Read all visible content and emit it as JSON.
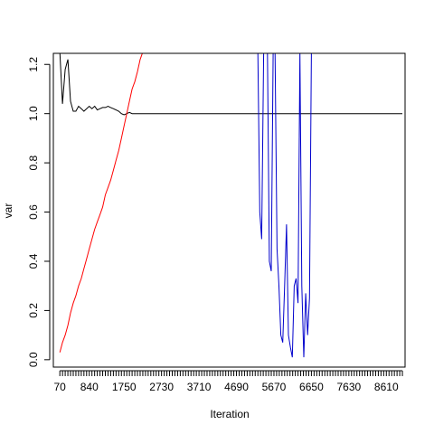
{
  "chart_data": {
    "type": "line",
    "title": "",
    "xlabel": "Iteration",
    "ylabel": "var",
    "xlim": [
      -100,
      9100
    ],
    "ylim": [
      -0.03,
      1.245
    ],
    "xtick_labels": [
      70,
      840,
      1750,
      2730,
      3710,
      4690,
      5670,
      6650,
      7630,
      8610
    ],
    "xtick_minor_step": 70,
    "xtick_minor_end": 9030,
    "ytick_labels": [
      0.0,
      0.2,
      0.4,
      0.6,
      0.8,
      1.0,
      1.2
    ],
    "ytick_format": [
      "0.0",
      "0.2",
      "0.4",
      "0.6",
      "0.8",
      "1.0",
      "1.2"
    ],
    "grid": false,
    "legend": "none",
    "series": [
      {
        "color": "#000000",
        "x": [
          70,
          140,
          210,
          280,
          350,
          420,
          490,
          560,
          630,
          700,
          770,
          840,
          910,
          980,
          1050,
          1120,
          1190,
          1260,
          1330,
          1400,
          1470,
          1540,
          1610,
          1680,
          1750,
          1820,
          1890,
          1960,
          2030,
          2100,
          9030
        ],
        "y": [
          1.25,
          1.04,
          1.18,
          1.22,
          1.05,
          1.01,
          1.01,
          1.03,
          1.02,
          1.01,
          1.02,
          1.03,
          1.02,
          1.03,
          1.015,
          1.02,
          1.025,
          1.025,
          1.03,
          1.025,
          1.02,
          1.015,
          1.01,
          1.0,
          0.995,
          1.0,
          1.005,
          1.0,
          1.0,
          1.0,
          1.0
        ]
      },
      {
        "color": "#ff0000",
        "x": [
          70,
          140,
          210,
          280,
          350,
          420,
          490,
          560,
          630,
          700,
          770,
          840,
          910,
          980,
          1050,
          1120,
          1190,
          1260,
          1330,
          1400,
          1470,
          1540,
          1610,
          1680,
          1750,
          1820,
          1890,
          1960,
          2030,
          2100,
          2170,
          2240
        ],
        "y": [
          0.03,
          0.07,
          0.1,
          0.14,
          0.19,
          0.23,
          0.26,
          0.3,
          0.33,
          0.37,
          0.41,
          0.45,
          0.49,
          0.53,
          0.56,
          0.59,
          0.62,
          0.67,
          0.7,
          0.73,
          0.77,
          0.81,
          0.85,
          0.9,
          0.95,
          1.0,
          1.05,
          1.1,
          1.13,
          1.17,
          1.22,
          1.25
        ]
      },
      {
        "color": "#0000cc",
        "x": [
          5250,
          5300,
          5350,
          5400,
          5450,
          5500,
          5550,
          5600,
          5650,
          5700,
          5750,
          5800,
          5850,
          5900,
          5950,
          6000,
          6050,
          6100,
          6150,
          6200,
          6250,
          6300,
          6350,
          6400,
          6450,
          6500,
          6550,
          6600,
          6650,
          6700,
          6750,
          6800,
          6850,
          6900,
          6950,
          7000,
          7050
        ],
        "y": [
          1.25,
          0.6,
          0.49,
          1.25,
          null,
          1.25,
          0.4,
          0.36,
          1.25,
          1.25,
          0.45,
          0.3,
          0.1,
          0.07,
          0.3,
          0.55,
          0.1,
          0.05,
          0.01,
          0.3,
          0.33,
          0.23,
          1.25,
          0.3,
          0.01,
          0.27,
          0.1,
          0.25,
          1.25,
          1.25,
          null,
          null,
          null,
          null,
          null,
          null,
          null
        ]
      }
    ]
  }
}
